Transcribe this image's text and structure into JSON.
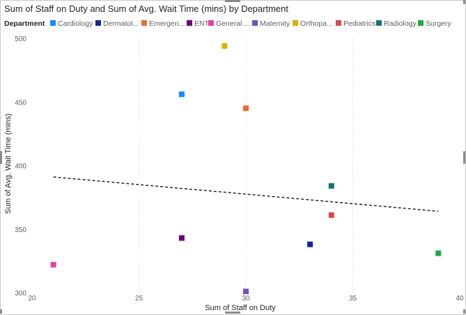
{
  "chart_data": {
    "type": "scatter",
    "title": "Sum of Staff on Duty and Sum of Avg. Wait Time (mins) by Department",
    "xlabel": "Sum of Staff on Duty",
    "ylabel": "Sum of Avg. Wait Time (mins)",
    "xlim": [
      20,
      40
    ],
    "ylim": [
      300,
      500
    ],
    "x_ticks": [
      "20",
      "25",
      "30",
      "35",
      "40"
    ],
    "y_ticks": [
      "300",
      "350",
      "400",
      "450",
      "500"
    ],
    "grid": "vertical dotted",
    "legend_position": "top-left",
    "legend": {
      "title": "Department",
      "items": [
        "Cardiology",
        "Dermatol...",
        "Emergen...",
        "ENT",
        "General ...",
        "Maternity",
        "Orthopa...",
        "Pediatrics",
        "Radiology",
        "Surgery"
      ]
    },
    "series": [
      {
        "name": "Cardiology",
        "color": "#118dff",
        "x": 27,
        "y": 456
      },
      {
        "name": "Dermatol...",
        "color": "#12239e",
        "x": 33,
        "y": 338
      },
      {
        "name": "Emergen...",
        "color": "#e66c37",
        "x": 30,
        "y": 445
      },
      {
        "name": "ENT",
        "color": "#6b007b",
        "x": 27,
        "y": 343
      },
      {
        "name": "General ...",
        "color": "#e044a7",
        "x": 21,
        "y": 322
      },
      {
        "name": "Maternity",
        "color": "#744ec2",
        "x": 30,
        "y": 301
      },
      {
        "name": "Orthopa...",
        "color": "#d9b300",
        "x": 29,
        "y": 494
      },
      {
        "name": "Pediatrics",
        "color": "#d64550",
        "x": 34,
        "y": 361
      },
      {
        "name": "Radiology",
        "color": "#197278",
        "x": 34,
        "y": 384
      },
      {
        "name": "Surgery",
        "color": "#1aab40",
        "x": 39,
        "y": 331
      }
    ],
    "trendline": {
      "x": [
        21,
        39
      ],
      "y": [
        391,
        364
      ]
    }
  }
}
